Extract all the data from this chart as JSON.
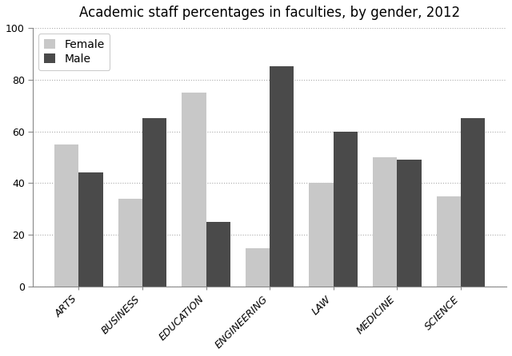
{
  "title": "Academic staff percentages in faculties, by gender, 2012",
  "categories": [
    "ARTS",
    "BUSINESS",
    "EDUCATION",
    "ENGINEERING",
    "LAW",
    "MEDICINE",
    "SCIENCE"
  ],
  "female_values": [
    55,
    34,
    75,
    15,
    40,
    50,
    35
  ],
  "male_values": [
    44,
    65,
    25,
    85,
    60,
    49,
    65
  ],
  "female_color": "#c8c8c8",
  "male_color": "#4a4a4a",
  "female_label": "Female",
  "male_label": "Male",
  "ylim": [
    0,
    100
  ],
  "yticks": [
    0,
    20,
    40,
    60,
    80,
    100
  ],
  "background_color": "#ffffff",
  "bar_width": 0.38,
  "grid_color": "#aaaaaa",
  "title_fontsize": 12
}
